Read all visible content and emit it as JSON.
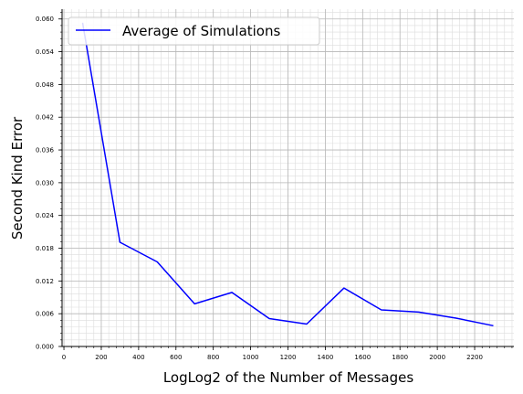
{
  "chart_data": {
    "type": "line",
    "xlabel": "LogLog2 of the Number of Messages",
    "ylabel": "Second Kind Error",
    "xlim": [
      -10,
      2410
    ],
    "ylim": [
      0.0,
      0.0618
    ],
    "xticks": [
      0,
      200,
      400,
      600,
      800,
      1000,
      1200,
      1400,
      1600,
      1800,
      2000,
      2200
    ],
    "xtick_labels": [
      "0",
      "200",
      "400",
      "600",
      "800",
      "1000",
      "1200",
      "1400",
      "1600",
      "1800",
      "2000",
      "2200"
    ],
    "yticks": [
      0.0,
      0.006,
      0.012,
      0.018,
      0.024,
      0.03,
      0.036,
      0.042,
      0.048,
      0.054,
      0.06
    ],
    "ytick_labels": [
      "0.000",
      "0.006",
      "0.012",
      "0.018",
      "0.024",
      "0.030",
      "0.036",
      "0.042",
      "0.048",
      "0.054",
      "0.060"
    ],
    "grid": true,
    "legend_position": "top-left",
    "series": [
      {
        "name": "Average of Simulations",
        "color": "#0000ff",
        "x": [
          100,
          300,
          500,
          700,
          900,
          1100,
          1300,
          1500,
          1700,
          1900,
          2100,
          2300
        ],
        "y": [
          0.0593,
          0.0191,
          0.0155,
          0.0078,
          0.0099,
          0.0051,
          0.0041,
          0.0107,
          0.0067,
          0.0063,
          0.0052,
          0.0038
        ]
      }
    ]
  }
}
